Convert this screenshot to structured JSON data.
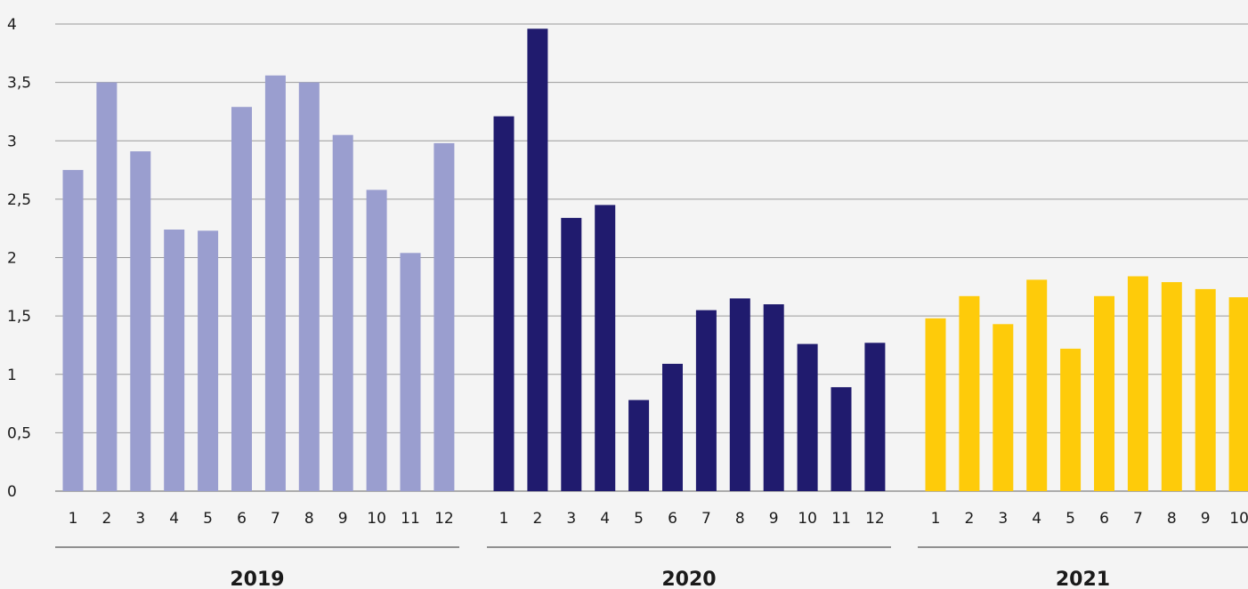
{
  "chart_data": {
    "type": "bar",
    "title": "",
    "xlabel": "",
    "ylabel": "",
    "ylim": [
      0,
      4
    ],
    "y_ticks": [
      "0",
      "0,5",
      "1",
      "1,5",
      "2",
      "2,5",
      "3",
      "3,5",
      "4"
    ],
    "grid": true,
    "groups": [
      {
        "label": "2019",
        "color": "#9a9ecf",
        "categories": [
          "1",
          "2",
          "3",
          "4",
          "5",
          "6",
          "7",
          "8",
          "9",
          "10",
          "11",
          "12"
        ],
        "values": [
          2.75,
          3.5,
          2.91,
          2.24,
          2.23,
          3.29,
          3.56,
          3.5,
          3.05,
          2.58,
          2.04,
          2.98
        ]
      },
      {
        "label": "2020",
        "color": "#201b6e",
        "categories": [
          "1",
          "2",
          "3",
          "4",
          "5",
          "6",
          "7",
          "8",
          "9",
          "10",
          "11",
          "12"
        ],
        "values": [
          3.21,
          3.96,
          2.34,
          2.45,
          0.78,
          1.09,
          1.55,
          1.65,
          1.6,
          1.26,
          0.89,
          1.27
        ]
      },
      {
        "label": "2021",
        "color": "#fecb0a",
        "categories": [
          "1",
          "2",
          "3",
          "4",
          "5",
          "6",
          "7",
          "8",
          "9",
          "10"
        ],
        "values": [
          1.48,
          1.67,
          1.43,
          1.81,
          1.22,
          1.67,
          1.84,
          1.79,
          1.73,
          1.66
        ]
      }
    ]
  }
}
